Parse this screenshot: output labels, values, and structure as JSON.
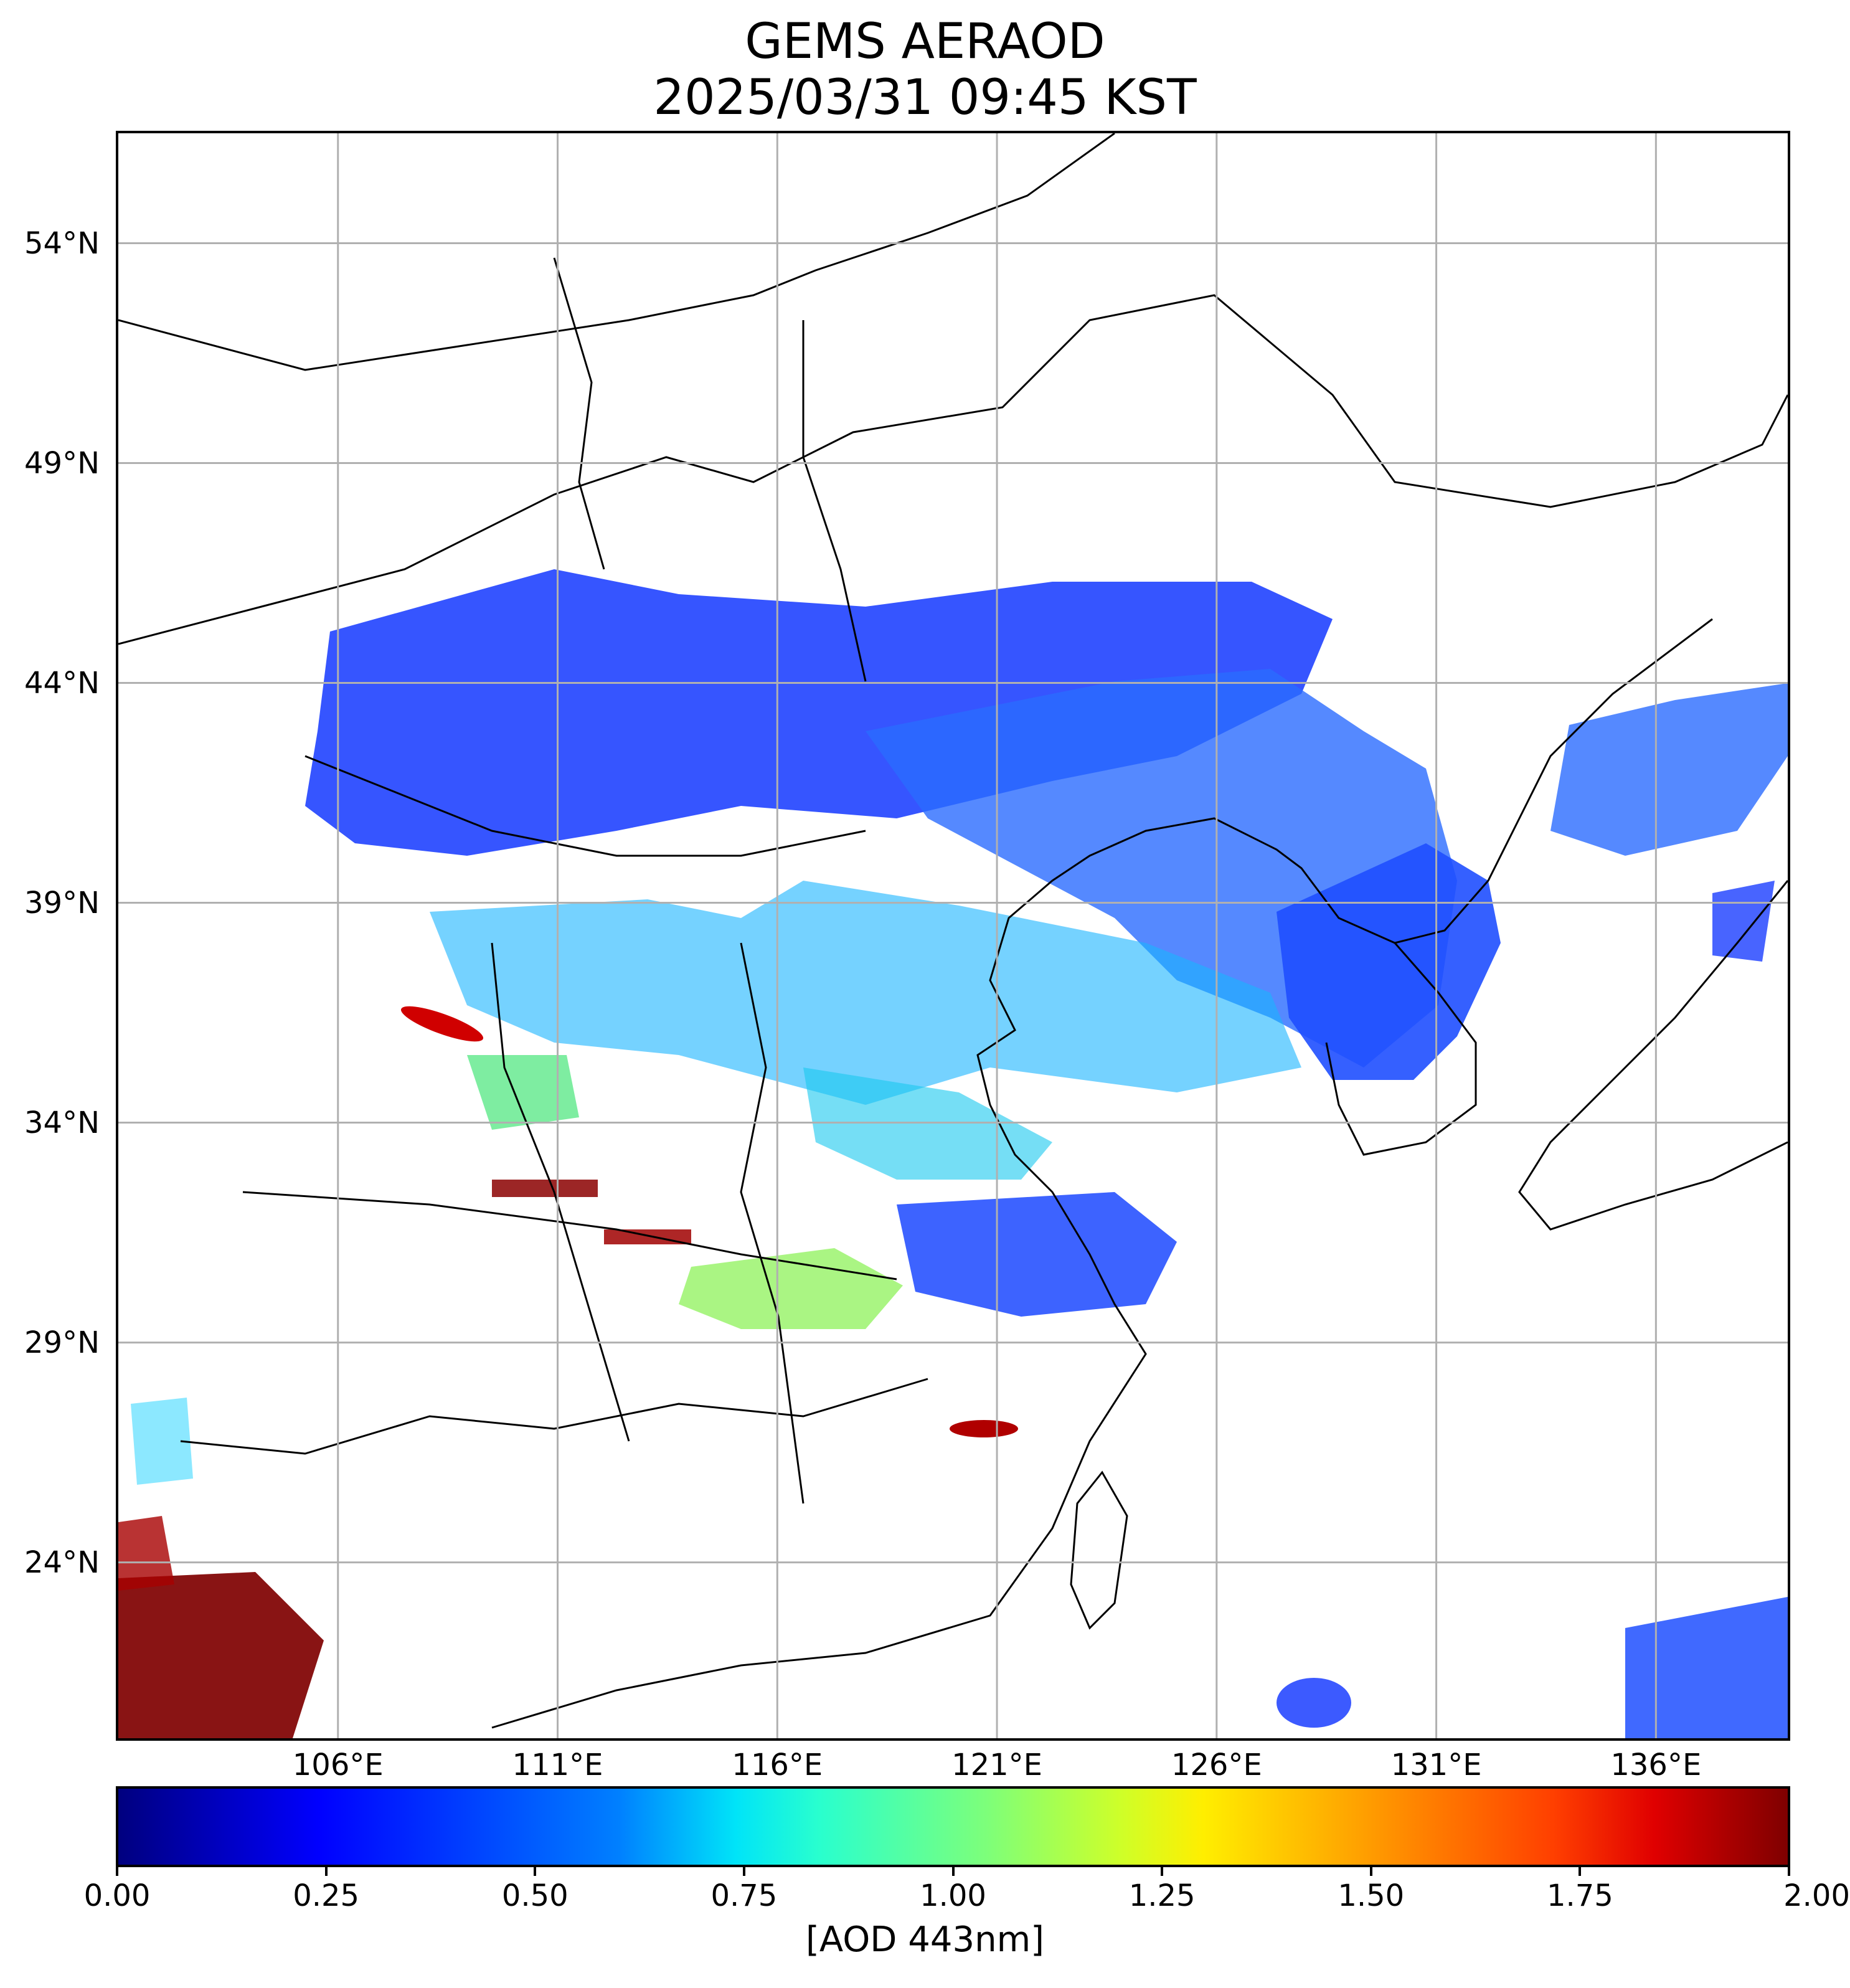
{
  "title": {
    "line1": "GEMS AERAOD",
    "line2": "2025/03/31 09:45 KST"
  },
  "map": {
    "lat_range": [
      20.0,
      56.5
    ],
    "lon_range": [
      101.0,
      139.0
    ],
    "lat_ticks": [
      {
        "value": 54,
        "label": "54°N"
      },
      {
        "value": 49,
        "label": "49°N"
      },
      {
        "value": 44,
        "label": "44°N"
      },
      {
        "value": 39,
        "label": "39°N"
      },
      {
        "value": 34,
        "label": "34°N"
      },
      {
        "value": 29,
        "label": "29°N"
      },
      {
        "value": 24,
        "label": "24°N"
      }
    ],
    "lon_ticks": [
      {
        "value": 106,
        "label": "106°E"
      },
      {
        "value": 111,
        "label": "111°E"
      },
      {
        "value": 116,
        "label": "116°E"
      },
      {
        "value": 121,
        "label": "121°E"
      },
      {
        "value": 126,
        "label": "126°E"
      },
      {
        "value": 131,
        "label": "131°E"
      },
      {
        "value": 136,
        "label": "136°E"
      }
    ],
    "grid": true,
    "colors": {
      "grid": "#b0b0b0",
      "boundary": "#000000",
      "background": "#ffffff"
    }
  },
  "colorbar": {
    "colormap": "jet",
    "range": [
      0.0,
      2.0
    ],
    "ticks": [
      "0.00",
      "0.25",
      "0.50",
      "0.75",
      "1.00",
      "1.25",
      "1.50",
      "1.75",
      "2.00"
    ],
    "label": "[AOD 443nm]"
  }
}
